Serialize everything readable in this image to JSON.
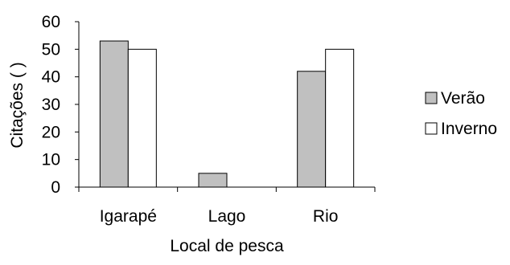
{
  "chart_data": {
    "type": "bar",
    "categories": [
      "Igarapé",
      "Lago",
      "Rio"
    ],
    "series": [
      {
        "name": "Verão",
        "values": [
          53,
          5,
          42
        ],
        "color": "#c0c0c0"
      },
      {
        "name": "Inverno",
        "values": [
          50,
          0,
          50
        ],
        "color": "#ffffff"
      }
    ],
    "xlabel": "Local de pesca",
    "ylabel": "Citações ( )",
    "ylim": [
      0,
      60
    ],
    "yticks": [
      "0",
      "10",
      "20",
      "30",
      "40",
      "50",
      "60"
    ],
    "grid": false,
    "legend_position": "right"
  }
}
